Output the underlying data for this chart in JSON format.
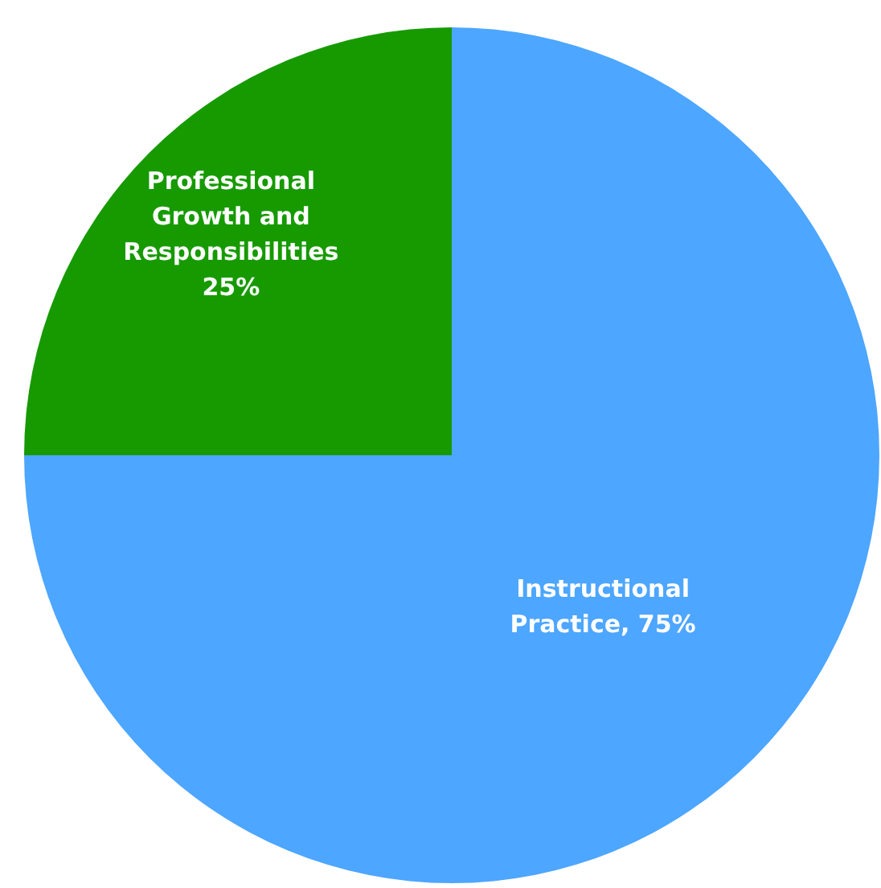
{
  "chart_data": {
    "type": "pie",
    "categories": [
      "Instructional Practice",
      "Professional Growth and Responsibilities"
    ],
    "values": [
      75,
      25
    ],
    "colors": [
      "#4da6ff",
      "#169a00"
    ],
    "value_labels": [
      "75%",
      "25%"
    ]
  }
}
